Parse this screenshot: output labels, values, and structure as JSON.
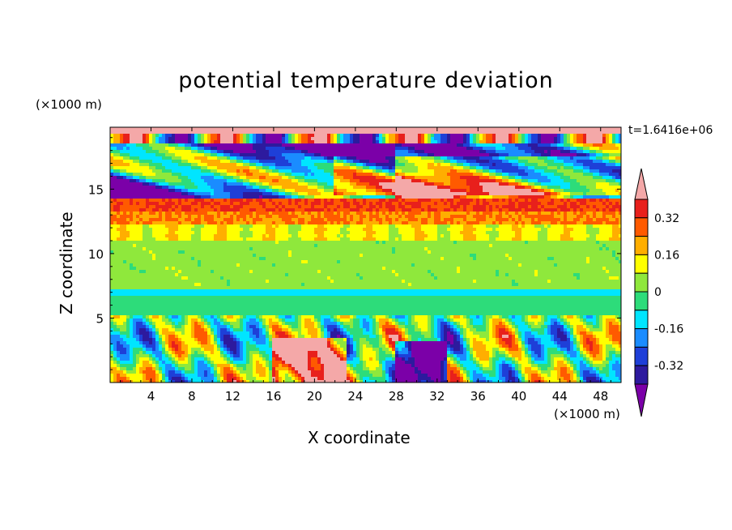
{
  "chart_data": {
    "type": "heatmap",
    "title": "potential temperature deviation",
    "xlabel": "X coordinate",
    "ylabel": "Z coordinate",
    "x_unit_label": "(×1000 m)",
    "y_unit_label": "(×1000 m)",
    "time_label": "t=1.6416e+06",
    "xlim": [
      0,
      50
    ],
    "ylim": [
      0,
      19.8
    ],
    "x_ticks": [
      "4",
      "8",
      "12",
      "16",
      "20",
      "24",
      "28",
      "32",
      "36",
      "40",
      "44",
      "48"
    ],
    "y_ticks": [
      "5",
      "10",
      "15"
    ],
    "colorbar": {
      "levels": [
        -0.4,
        -0.32,
        -0.24,
        -0.16,
        -0.08,
        0,
        0.08,
        0.16,
        0.24,
        0.32,
        0.4
      ],
      "labels": [
        "0.32",
        "0.16",
        "0",
        "-0.16",
        "-0.32"
      ],
      "colors": [
        "#7b00a8",
        "#2d1a9e",
        "#1e3fd8",
        "#1a8cff",
        "#00e5ff",
        "#2ddc7a",
        "#8fe83c",
        "#ffff00",
        "#ffae00",
        "#ff5a00",
        "#e8201c",
        "#f4a8a8"
      ]
    },
    "fields": [
      {
        "x": [
          0,
          50
        ],
        "z": [
          19.2,
          19.8
        ],
        "value": "above 0.4"
      },
      {
        "x": [
          0,
          50
        ],
        "z": [
          13.2,
          14.2
        ],
        "value": "0.32"
      },
      {
        "x": [
          0,
          50
        ],
        "z": [
          12.2,
          13.2
        ],
        "value": "0.24"
      },
      {
        "x": [
          0,
          50
        ],
        "z": [
          11.0,
          12.2
        ],
        "value": "0.12"
      },
      {
        "x": [
          0,
          50
        ],
        "z": [
          7.5,
          11.0
        ],
        "value": "0.04"
      },
      {
        "x": [
          0,
          50
        ],
        "z": [
          6.8,
          7.3
        ],
        "value": "-0.12"
      },
      {
        "x": [
          0,
          50
        ],
        "z": [
          5.3,
          6.8
        ],
        "value": "-0.04"
      },
      {
        "x": [
          0,
          50
        ],
        "z": [
          0,
          5.3
        ],
        "value": "mixed -0.4 to 0.4"
      },
      {
        "x": [
          16,
          23
        ],
        "z": [
          0.3,
          3.5
        ],
        "value": "above 0.4"
      },
      {
        "x": [
          28,
          33
        ],
        "z": [
          0.3,
          3.2
        ],
        "value": "below -0.4"
      },
      {
        "x": [
          0,
          28
        ],
        "z": [
          13.5,
          18.5
        ],
        "value": "below -0.4"
      },
      {
        "x": [
          22,
          50
        ],
        "z": [
          14.5,
          17.5
        ],
        "value": "above 0.4"
      }
    ]
  }
}
